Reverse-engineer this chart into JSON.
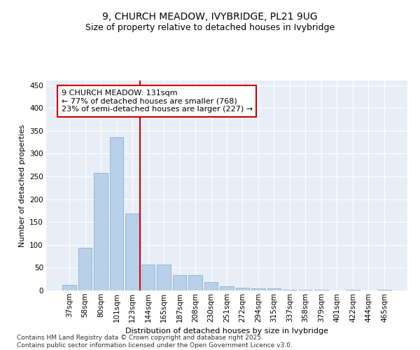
{
  "title": "9, CHURCH MEADOW, IVYBRIDGE, PL21 9UG",
  "subtitle": "Size of property relative to detached houses in Ivybridge",
  "xlabel": "Distribution of detached houses by size in Ivybridge",
  "ylabel": "Number of detached properties",
  "categories": [
    "37sqm",
    "58sqm",
    "80sqm",
    "101sqm",
    "123sqm",
    "144sqm",
    "165sqm",
    "187sqm",
    "208sqm",
    "230sqm",
    "251sqm",
    "272sqm",
    "294sqm",
    "315sqm",
    "337sqm",
    "358sqm",
    "379sqm",
    "401sqm",
    "422sqm",
    "444sqm",
    "465sqm"
  ],
  "values": [
    13,
    93,
    258,
    336,
    168,
    57,
    57,
    33,
    33,
    18,
    9,
    6,
    5,
    5,
    2,
    1,
    1,
    0,
    1,
    0,
    2
  ],
  "bar_color": "#b8d0ea",
  "bar_edge_color": "#8ab0d0",
  "vline_color": "#cc0000",
  "annotation_text": "9 CHURCH MEADOW: 131sqm\n← 77% of detached houses are smaller (768)\n23% of semi-detached houses are larger (227) →",
  "annotation_box_color": "#ffffff",
  "annotation_box_edge_color": "#cc0000",
  "ylim": [
    0,
    460
  ],
  "yticks": [
    0,
    50,
    100,
    150,
    200,
    250,
    300,
    350,
    400,
    450
  ],
  "background_color": "#e8eef8",
  "footer_text": "Contains HM Land Registry data © Crown copyright and database right 2025.\nContains public sector information licensed under the Open Government Licence v3.0.",
  "title_fontsize": 10,
  "subtitle_fontsize": 9,
  "axis_label_fontsize": 8,
  "tick_fontsize": 7.5,
  "annotation_fontsize": 8
}
